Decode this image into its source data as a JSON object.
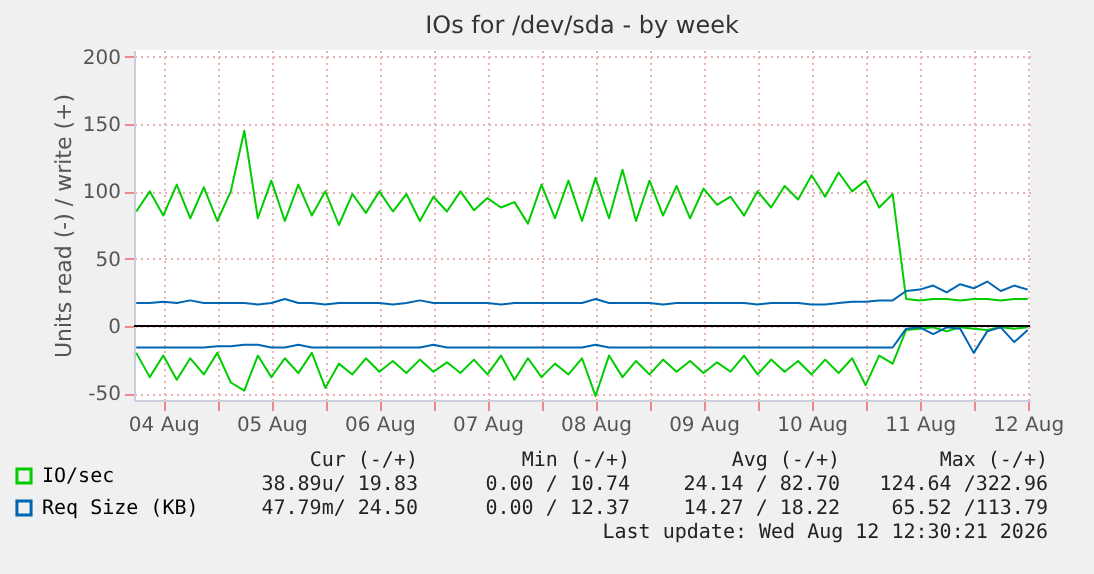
{
  "chart_data": {
    "type": "line",
    "title": "IOs for /dev/sda - by week",
    "ylabel": "Units read (-) / write (+)",
    "x": [
      "2026-08-04T06:00",
      "2026-08-04T09:00",
      "2026-08-04T12:00",
      "2026-08-04T15:00",
      "2026-08-04T18:00",
      "2026-08-04T21:00",
      "2026-08-05T00:00",
      "2026-08-05T03:00",
      "2026-08-05T06:00",
      "2026-08-05T09:00",
      "2026-08-05T12:00",
      "2026-08-05T15:00",
      "2026-08-05T18:00",
      "2026-08-05T21:00",
      "2026-08-06T00:00",
      "2026-08-06T03:00",
      "2026-08-06T06:00",
      "2026-08-06T09:00",
      "2026-08-06T12:00",
      "2026-08-06T15:00",
      "2026-08-06T18:00",
      "2026-08-06T21:00",
      "2026-08-07T00:00",
      "2026-08-07T03:00",
      "2026-08-07T06:00",
      "2026-08-07T09:00",
      "2026-08-07T12:00",
      "2026-08-07T15:00",
      "2026-08-07T18:00",
      "2026-08-07T21:00",
      "2026-08-08T00:00",
      "2026-08-08T03:00",
      "2026-08-08T06:00",
      "2026-08-08T09:00",
      "2026-08-08T12:00",
      "2026-08-08T15:00",
      "2026-08-08T18:00",
      "2026-08-08T21:00",
      "2026-08-09T00:00",
      "2026-08-09T03:00",
      "2026-08-09T06:00",
      "2026-08-09T09:00",
      "2026-08-09T12:00",
      "2026-08-09T15:00",
      "2026-08-09T18:00",
      "2026-08-09T21:00",
      "2026-08-10T00:00",
      "2026-08-10T03:00",
      "2026-08-10T06:00",
      "2026-08-10T09:00",
      "2026-08-10T12:00",
      "2026-08-10T15:00",
      "2026-08-10T18:00",
      "2026-08-10T21:00",
      "2026-08-11T00:00",
      "2026-08-11T03:00",
      "2026-08-11T06:00",
      "2026-08-11T09:00",
      "2026-08-11T12:00",
      "2026-08-11T15:00",
      "2026-08-11T18:00",
      "2026-08-11T21:00",
      "2026-08-12T00:00",
      "2026-08-12T03:00",
      "2026-08-12T06:00",
      "2026-08-12T09:00",
      "2026-08-12T12:00"
    ],
    "xlim": [
      "2026-08-04T05:30",
      "2026-08-12T12:30"
    ],
    "xticks": [
      {
        "value": "2026-08-04T12:00",
        "label": "04 Aug"
      },
      {
        "value": "2026-08-05T00:00",
        "label": null
      },
      {
        "value": "2026-08-05T12:00",
        "label": "05 Aug"
      },
      {
        "value": "2026-08-06T00:00",
        "label": null
      },
      {
        "value": "2026-08-06T12:00",
        "label": "06 Aug"
      },
      {
        "value": "2026-08-07T00:00",
        "label": null
      },
      {
        "value": "2026-08-07T12:00",
        "label": "07 Aug"
      },
      {
        "value": "2026-08-08T00:00",
        "label": null
      },
      {
        "value": "2026-08-08T12:00",
        "label": "08 Aug"
      },
      {
        "value": "2026-08-09T00:00",
        "label": null
      },
      {
        "value": "2026-08-09T12:00",
        "label": "09 Aug"
      },
      {
        "value": "2026-08-10T00:00",
        "label": null
      },
      {
        "value": "2026-08-10T12:00",
        "label": "10 Aug"
      },
      {
        "value": "2026-08-11T00:00",
        "label": null
      },
      {
        "value": "2026-08-11T12:00",
        "label": "11 Aug"
      },
      {
        "value": "2026-08-12T00:00",
        "label": null
      },
      {
        "value": "2026-08-12T12:00",
        "label": "12 Aug"
      }
    ],
    "ylim": [
      -55,
      205
    ],
    "yticks": [
      -50,
      0,
      50,
      100,
      150,
      200
    ],
    "grid": true,
    "legend": "bottom left",
    "ref_lines": [
      {
        "axis": "y",
        "value": 0,
        "color": "#000000"
      }
    ],
    "series": [
      {
        "name": "IO/sec",
        "color": "#00cc00",
        "values": [
          85,
          100,
          82,
          105,
          80,
          103,
          78,
          100,
          145,
          80,
          108,
          78,
          105,
          82,
          100,
          75,
          98,
          84,
          100,
          85,
          98,
          78,
          96,
          85,
          100,
          86,
          95,
          88,
          92,
          76,
          105,
          80,
          108,
          78,
          110,
          80,
          116,
          78,
          108,
          82,
          104,
          80,
          102,
          90,
          96,
          82,
          100,
          88,
          104,
          94,
          112,
          96,
          114,
          100,
          108,
          88,
          98,
          20,
          19,
          20,
          20,
          19,
          20,
          20,
          19,
          20,
          20
        ]
      },
      {
        "color": "#00cc00",
        "values": [
          -20,
          -38,
          -22,
          -40,
          -24,
          -36,
          -20,
          -42,
          -48,
          -22,
          -38,
          -24,
          -35,
          -20,
          -46,
          -28,
          -36,
          -24,
          -34,
          -26,
          -35,
          -25,
          -34,
          -27,
          -35,
          -25,
          -36,
          -22,
          -40,
          -24,
          -38,
          -28,
          -36,
          -24,
          -52,
          -22,
          -38,
          -26,
          -36,
          -25,
          -34,
          -26,
          -35,
          -27,
          -34,
          -22,
          -36,
          -25,
          -34,
          -26,
          -36,
          -25,
          -35,
          -24,
          -44,
          -22,
          -28,
          -3,
          -2,
          -1,
          -4,
          -1,
          -2,
          -3,
          -1,
          -2,
          -1
        ]
      },
      {
        "name": "Req Size (KB)",
        "color": "#0066b3",
        "values": [
          17,
          17,
          18,
          17,
          19,
          17,
          17,
          17,
          17,
          16,
          17,
          20,
          17,
          17,
          16,
          17,
          17,
          17,
          17,
          16,
          17,
          19,
          17,
          17,
          17,
          17,
          17,
          16,
          17,
          17,
          17,
          17,
          17,
          17,
          20,
          17,
          17,
          17,
          17,
          16,
          17,
          17,
          17,
          17,
          17,
          17,
          16,
          17,
          17,
          17,
          16,
          16,
          17,
          18,
          18,
          19,
          19,
          26,
          27,
          30,
          25,
          31,
          28,
          33,
          26,
          30,
          27
        ]
      },
      {
        "color": "#0066b3",
        "values": [
          -16,
          -16,
          -16,
          -16,
          -16,
          -16,
          -15,
          -15,
          -14,
          -14,
          -16,
          -16,
          -14,
          -16,
          -16,
          -16,
          -16,
          -16,
          -16,
          -16,
          -16,
          -16,
          -14,
          -16,
          -16,
          -16,
          -16,
          -16,
          -16,
          -16,
          -16,
          -16,
          -16,
          -16,
          -14,
          -16,
          -16,
          -16,
          -16,
          -16,
          -16,
          -16,
          -16,
          -16,
          -16,
          -16,
          -16,
          -16,
          -16,
          -16,
          -16,
          -16,
          -16,
          -16,
          -16,
          -16,
          -16,
          -2,
          -1,
          -6,
          -1,
          -2,
          -20,
          -4,
          -1,
          -12,
          -3
        ]
      }
    ],
    "annotations": [
      "Cur (-/+)",
      "Min (-/+)",
      "Avg (-/+)",
      "Max (-/+)",
      "38.89u/ 19.83",
      "0.00 / 10.74",
      "24.14 / 82.70",
      "124.64 /322.96",
      "47.79m/ 24.50",
      "0.00 / 12.37",
      "14.27 / 18.22",
      "65.52 /113.79",
      "Last update: Wed Aug 12 12:30:21 2026"
    ]
  }
}
